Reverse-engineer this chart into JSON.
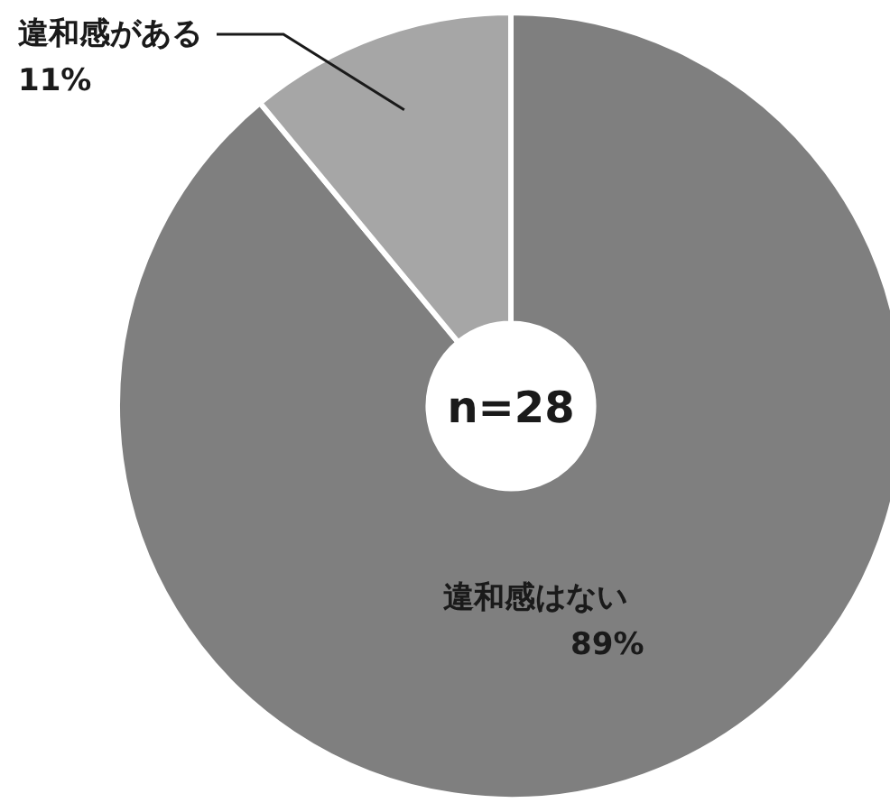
{
  "chart_data": {
    "type": "donut",
    "categories": [
      "違和感はない",
      "違和感がある"
    ],
    "values": [
      89,
      11
    ],
    "colors": [
      "#7f7f7f",
      "#a6a6a6"
    ],
    "value_labels": [
      "89%",
      "11%"
    ],
    "annotations": [
      "n=28"
    ]
  }
}
